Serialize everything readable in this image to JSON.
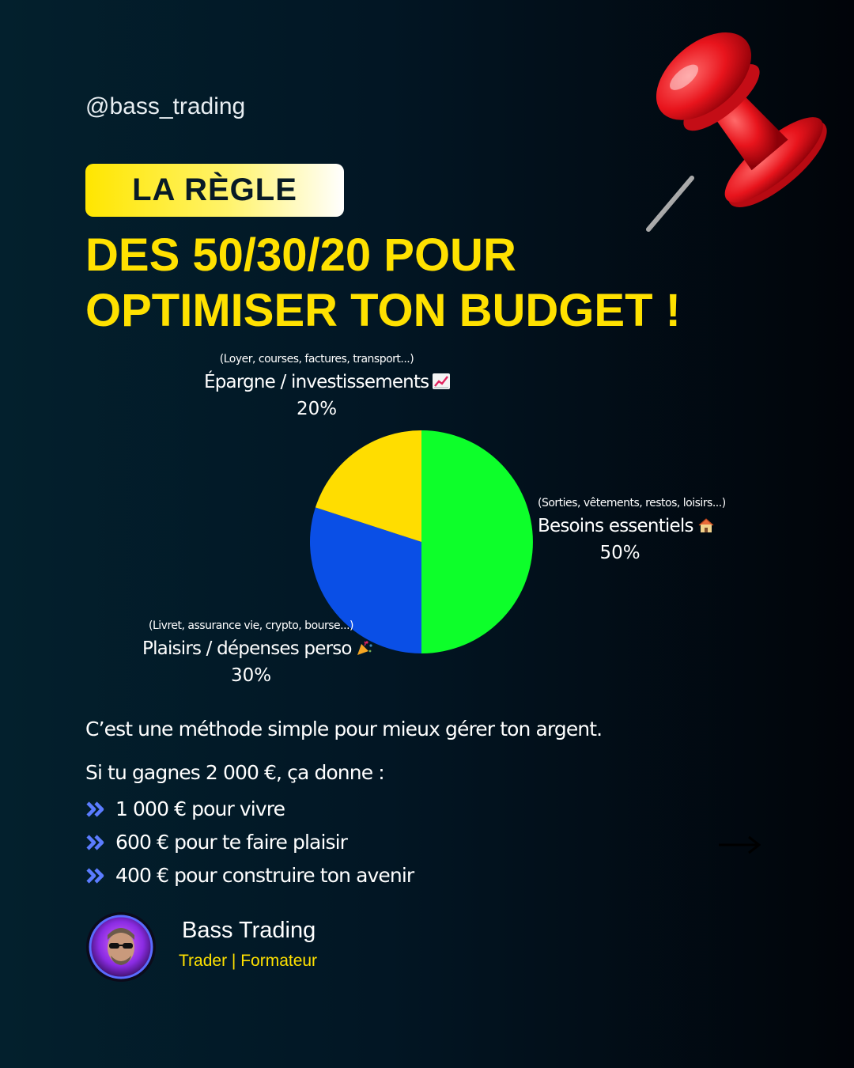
{
  "handle": "@bass_trading",
  "badge": "LA RÈGLE",
  "headline": {
    "line1": "DES 50/30/20 POUR",
    "line2": "OPTIMISER TON BUDGET !"
  },
  "chart_data": {
    "type": "pie",
    "values": [
      50,
      30,
      20
    ],
    "slices": [
      {
        "label": "Besoins essentiels",
        "value": 50,
        "pct_label": "50%",
        "sub": "(Sorties, vêtements, restos, loisirs...)",
        "color": "#0dff2a",
        "emoji": "house-icon"
      },
      {
        "label": "Plaisirs / dépenses perso",
        "value": 30,
        "pct_label": "30%",
        "sub": "(Livret, assurance vie, crypto, bourse...)",
        "color": "#0a4fe6",
        "emoji": "party-popper-icon"
      },
      {
        "label": "Épargne / investissements",
        "value": 20,
        "pct_label": "20%",
        "sub": "(Loyer, courses, factures, transport...)",
        "color": "#ffdd00",
        "emoji": "chart-increasing-icon"
      }
    ]
  },
  "body": {
    "intro": "C’est une méthode simple pour mieux gérer ton argent.",
    "example": "Si tu gagnes 2 000 €, ça donne :",
    "bullets": [
      "1 000 € pour vivre",
      "600 € pour te faire plaisir",
      "400 € pour construire ton avenir"
    ]
  },
  "author": {
    "name": "Bass Trading",
    "role": "Trader | Formateur"
  },
  "colors": {
    "accent": "#ffe100",
    "bullet": "#5b7cff"
  }
}
